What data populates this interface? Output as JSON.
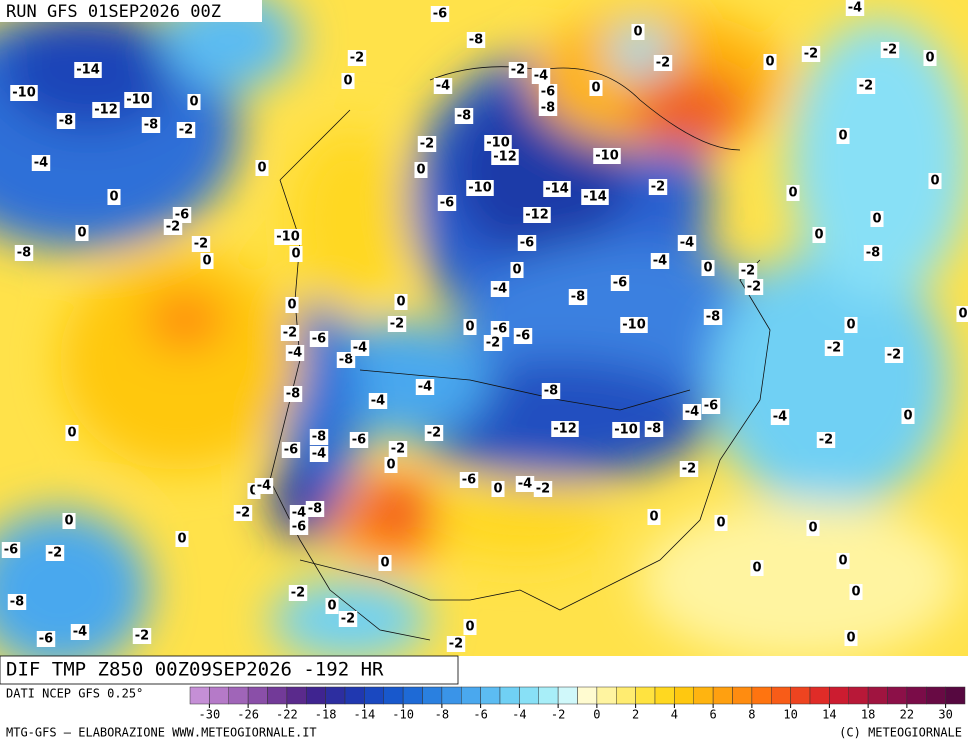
{
  "header": {
    "run": "RUN GFS 01SEP2026 00Z"
  },
  "footer": {
    "title": "DIF TMP Z850 00Z09SEP2026 -192 HR",
    "source": "DATI NCEP GFS 0.25°",
    "credit": "MTG-GFS — ELABORAZIONE WWW.METEOGIORNALE.IT",
    "copyright": "(C) METEOGIORNALE"
  },
  "colorbar": {
    "ticks": [
      -30,
      -26,
      -22,
      -18,
      -14,
      -10,
      -8,
      -6,
      -4,
      -2,
      0,
      2,
      4,
      6,
      8,
      10,
      14,
      18,
      22,
      30
    ],
    "colors": [
      "#c58fd6",
      "#b57ac8",
      "#a065b8",
      "#8a4fa8",
      "#723a98",
      "#5a2a8c",
      "#3f2490",
      "#2d2ea0",
      "#2038b0",
      "#1a48c0",
      "#1858cc",
      "#1e6ad6",
      "#2a80e0",
      "#3a94e8",
      "#4aa8ee",
      "#5cbcf2",
      "#70d0f4",
      "#88e0f6",
      "#a8eef8",
      "#d0f8fa",
      "#fffbd0",
      "#fff4a0",
      "#ffec70",
      "#ffe340",
      "#ffd820",
      "#ffc810",
      "#ffb410",
      "#ffa010",
      "#ff8c10",
      "#ff7410",
      "#f85c18",
      "#ee4420",
      "#e02c28",
      "#cc1c30",
      "#b81838",
      "#a01440",
      "#8c1048",
      "#7a0c48",
      "#680a44",
      "#560840"
    ]
  },
  "contour_labels": [
    -6,
    -4,
    -8,
    0,
    -2,
    -2,
    -4,
    -2,
    0,
    -2,
    -2,
    0,
    -14,
    0,
    -4,
    -6,
    0,
    -2,
    -10,
    -10,
    -12,
    0,
    -8,
    -8,
    -8,
    -8,
    -2,
    0,
    -2,
    -10,
    -12,
    -10,
    -4,
    0,
    0,
    0,
    -10,
    -14,
    -14,
    -2,
    0,
    0,
    -6,
    -12,
    -6,
    -2,
    0,
    0,
    -10,
    -6,
    -4,
    -2,
    0,
    0,
    0,
    -8,
    -4,
    0,
    -2,
    -8,
    0,
    -2,
    -6,
    -4,
    -8,
    0,
    0,
    -8,
    0,
    -2,
    0,
    -6,
    -2,
    -6,
    -10,
    -2,
    -6,
    0,
    -2,
    -2,
    -4,
    -8,
    -4,
    -4,
    -8,
    -8,
    -4,
    -4,
    -6,
    -4,
    0,
    0,
    -8,
    -12,
    -10,
    -8,
    -6,
    -2,
    -2,
    -6,
    -4,
    -2,
    0,
    -2,
    -6,
    0,
    -4,
    -2,
    0,
    -4,
    -8,
    -4,
    -2,
    -6,
    0,
    0,
    0,
    0,
    0,
    -6,
    -2,
    0,
    0,
    0,
    -2,
    0,
    0,
    -8,
    -2,
    0,
    -6,
    -4,
    -2,
    -2,
    0
  ]
}
